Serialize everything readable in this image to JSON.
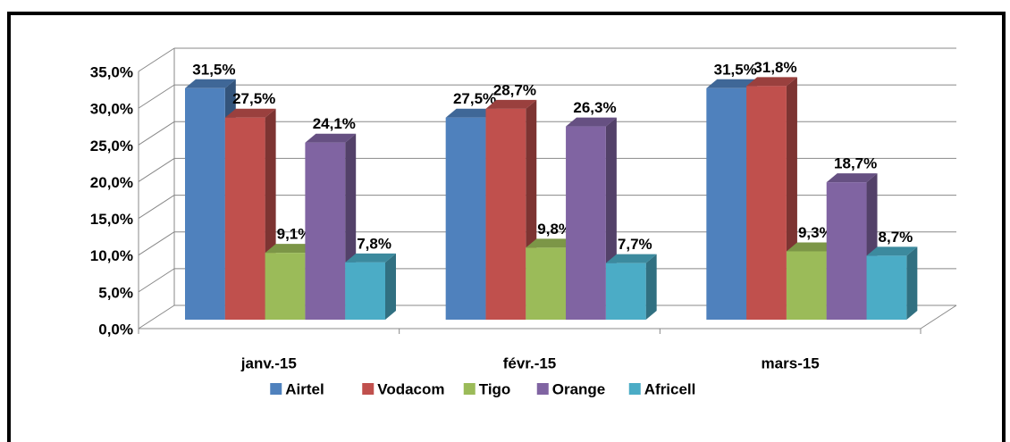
{
  "chart_data": {
    "type": "bar3d",
    "categories": [
      "janv.-15",
      "févr.-15",
      "mars-15"
    ],
    "series": [
      {
        "name": "Airtel",
        "color": "#4f81bd",
        "values": [
          31.5,
          27.5,
          31.5
        ],
        "value_labels": [
          "31,5%",
          "27,5%",
          "31,5%"
        ]
      },
      {
        "name": "Vodacom",
        "color": "#c0504d",
        "values": [
          27.5,
          28.7,
          31.8
        ],
        "value_labels": [
          "27,5%",
          "28,7%",
          "31,8%"
        ]
      },
      {
        "name": "Tigo",
        "color": "#9bbb59",
        "values": [
          9.1,
          9.8,
          9.3
        ],
        "value_labels": [
          "9,1%",
          "9,8%",
          "9,3%"
        ]
      },
      {
        "name": "Orange",
        "color": "#8064a2",
        "values": [
          24.1,
          26.3,
          18.7
        ],
        "value_labels": [
          "24,1%",
          "26,3%",
          "18,7%"
        ]
      },
      {
        "name": "Africell",
        "color": "#4bacc6",
        "values": [
          7.8,
          7.7,
          8.7
        ],
        "value_labels": [
          "7,8%",
          "7,7%",
          "8,7%"
        ]
      }
    ],
    "ylim": [
      0,
      35
    ],
    "yticks": [
      {
        "value": 0,
        "label": "0,0%"
      },
      {
        "value": 5,
        "label": "5,0%"
      },
      {
        "value": 10,
        "label": "10,0%"
      },
      {
        "value": 15,
        "label": "15,0%"
      },
      {
        "value": 20,
        "label": "20,0%"
      },
      {
        "value": 25,
        "label": "25,0%"
      },
      {
        "value": 30,
        "label": "30,0%"
      },
      {
        "value": 35,
        "label": "35,0%"
      }
    ],
    "grid": true,
    "legend": "bottom"
  }
}
